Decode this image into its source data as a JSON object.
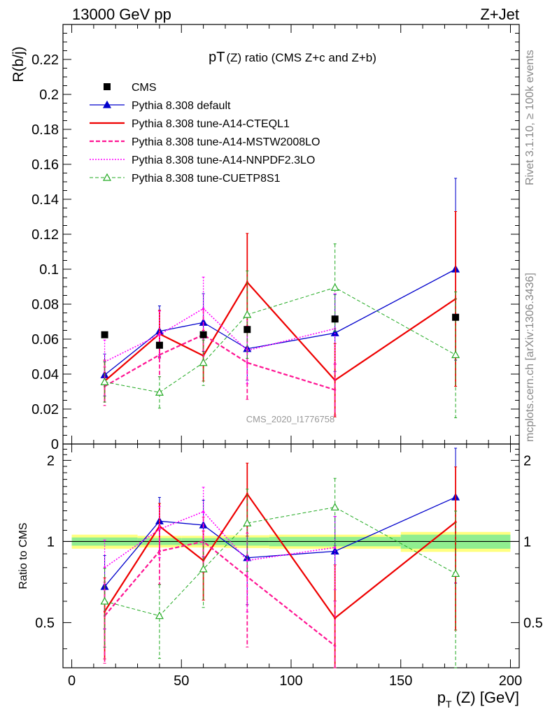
{
  "header": {
    "left": "13000 GeV pp",
    "right": "Z+Jet"
  },
  "side": {
    "rivet": "Rivet 3.1.10, ≥ 100k events",
    "mcplots": "mcplots.cern.ch [arXiv:1306.3436]"
  },
  "chart_data": {
    "type": "line",
    "title_main": "pT",
    "title_sub": "(Z) ratio (CMS  Z+c and Z+b)",
    "ylabel": "R(b/j)",
    "ratio_ylabel": "Ratio to CMS",
    "xlabel_p": "p",
    "xlabel_T": "T",
    "xlabel_rest": "(Z) [GeV]",
    "watermark": "CMS_2020_I1776758",
    "xlim": [
      -4,
      204
    ],
    "ylim": [
      0,
      0.24
    ],
    "ratio_ylim": [
      0.34,
      2.3
    ],
    "x_ticks": [
      0,
      50,
      100,
      150,
      200
    ],
    "y_ticks": [
      0,
      0.02,
      0.04,
      0.06,
      0.08,
      0.1,
      0.12,
      0.14,
      0.16,
      0.18,
      0.2,
      0.22
    ],
    "y_tick_labels": [
      "0",
      "0.02",
      "0.04",
      "0.06",
      "0.08",
      "0.1",
      "0.12",
      "0.14",
      "0.16",
      "0.18",
      "0.2",
      "0.22"
    ],
    "ratio_ticks": [
      0.5,
      1,
      2
    ],
    "ratio_tick_labels": [
      "0.5",
      "1",
      "2"
    ],
    "x": [
      15,
      40,
      60,
      80,
      120,
      175
    ],
    "bin_edges": [
      0,
      30,
      50,
      70,
      90,
      150,
      200
    ],
    "data": {
      "name": "CMS",
      "y": [
        0.0625,
        0.0565,
        0.0625,
        0.0655,
        0.0715,
        0.0725
      ],
      "band_stat": [
        0.035,
        0.03,
        0.03,
        0.035,
        0.04,
        0.06
      ],
      "band_total": [
        0.06,
        0.05,
        0.05,
        0.055,
        0.06,
        0.085
      ]
    },
    "series": [
      {
        "name": "Pythia 8.308 default",
        "color": "#0000cc",
        "dash": "",
        "width": 1.3,
        "marker": "tri-filled",
        "y": [
          0.0395,
          0.0645,
          0.0695,
          0.0545,
          0.0635,
          0.1
        ],
        "err": [
          0.012,
          0.0145,
          0.0165,
          0.018,
          0.022,
          0.052
        ],
        "ratio": [
          0.68,
          1.19,
          1.15,
          0.87,
          0.92,
          1.46
        ]
      },
      {
        "name": "Pythia 8.308 tune-A14-CTEQL1",
        "color": "#ee0000",
        "dash": "",
        "width": 2.2,
        "marker": "none",
        "y": [
          0.036,
          0.063,
          0.0505,
          0.0925,
          0.0365,
          0.083
        ],
        "err": [
          0.012,
          0.0135,
          0.0145,
          0.028,
          0.021,
          0.05
        ],
        "ratio": [
          0.55,
          1.14,
          0.85,
          1.5,
          0.52,
          1.18
        ]
      },
      {
        "name": "Pythia 8.308 tune-A14-MSTW2008LO",
        "color": "#ff1493",
        "dash": "6,3",
        "width": 2.2,
        "marker": "none",
        "y": [
          0.033,
          0.051,
          0.0625,
          0.0465,
          0.031,
          null
        ],
        "err": [
          0.011,
          0.0125,
          0.0145,
          0.021,
          0.0145,
          null
        ],
        "ratio": [
          0.53,
          0.92,
          1.0,
          0.74,
          0.41,
          null
        ]
      },
      {
        "name": "Pythia 8.308 tune-A14-NNPDF2.3LO",
        "color": "#ff00ff",
        "dash": "2,2",
        "width": 1.6,
        "marker": "none",
        "y": [
          0.047,
          0.0625,
          0.0775,
          0.0535,
          0.066,
          null
        ],
        "err": [
          0.0125,
          0.0135,
          0.018,
          0.019,
          0.02,
          null
        ],
        "ratio": [
          0.8,
          1.11,
          1.29,
          0.85,
          0.95,
          null
        ]
      },
      {
        "name": "Pythia 8.308 tune-CUETP8S1",
        "color": "#22aa22",
        "dash": "5,3",
        "width": 1.0,
        "marker": "tri-open",
        "y": [
          0.0355,
          0.0295,
          0.0465,
          0.074,
          0.0895,
          0.051
        ],
        "err": [
          0.0115,
          0.009,
          0.013,
          0.025,
          0.025,
          0.036
        ],
        "ratio": [
          0.6,
          0.53,
          0.79,
          1.17,
          1.34,
          0.76
        ]
      }
    ],
    "legend_position": "top-left",
    "grid": false
  }
}
